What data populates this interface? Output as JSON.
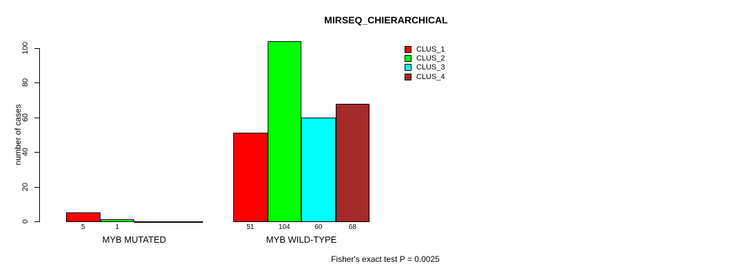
{
  "chart_data": {
    "type": "bar",
    "title": "MIRSEQ_CHIERARCHICAL",
    "xlabel": "",
    "ylabel": "number of cases",
    "ylim": [
      0,
      100
    ],
    "y_ticks": [
      0,
      20,
      40,
      60,
      80,
      100
    ],
    "categories": [
      "MYB MUTATED",
      "MYB WILD-TYPE"
    ],
    "series": [
      {
        "name": "CLUS_1",
        "color": "#ff0000",
        "values": [
          5,
          51
        ]
      },
      {
        "name": "CLUS_2",
        "color": "#00ff00",
        "values": [
          1,
          104
        ]
      },
      {
        "name": "CLUS_3",
        "color": "#00ffff",
        "values": [
          0,
          60
        ]
      },
      {
        "name": "CLUS_4",
        "color": "#a52a2a",
        "values": [
          0,
          68
        ]
      }
    ],
    "bar_value_labels": [
      [
        "5",
        "1",
        "",
        ""
      ],
      [
        "51",
        "104",
        "60",
        "68"
      ]
    ],
    "annotation": "Fisher's exact test P = 0.0025",
    "legend_position": "top-right",
    "grid": false,
    "bar_border_color": "#000000",
    "axis_color": "#000000",
    "background_color": "#ffffff"
  }
}
